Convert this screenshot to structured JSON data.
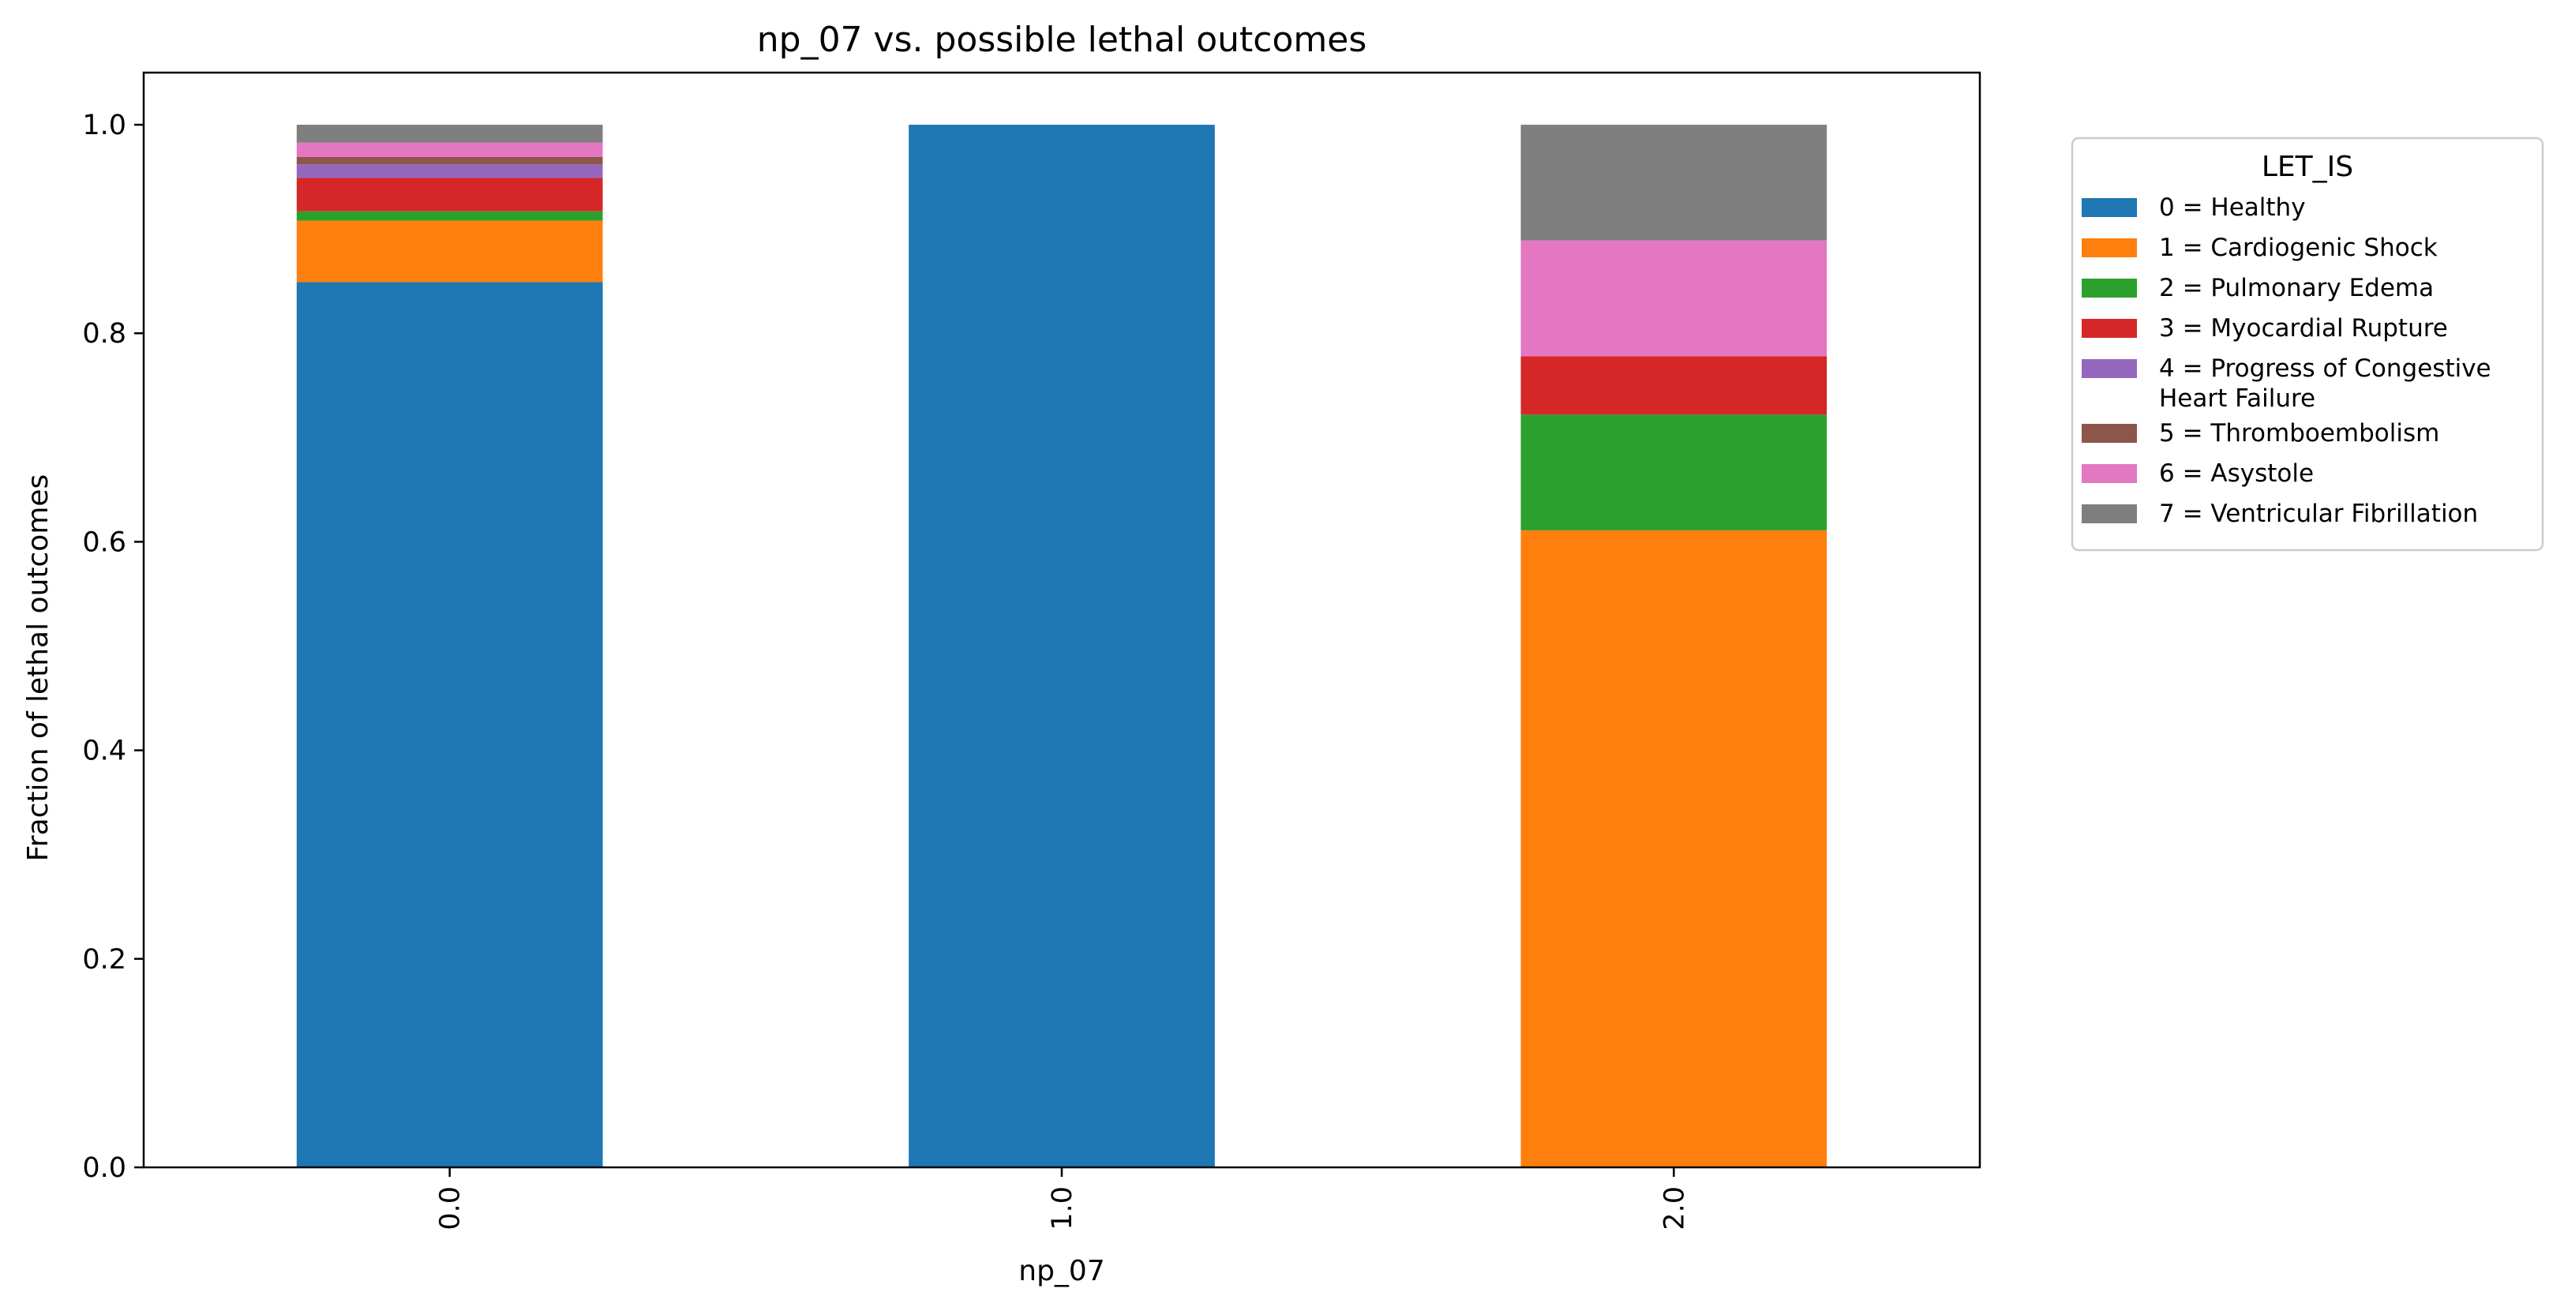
{
  "chart_data": {
    "type": "bar",
    "stacked": true,
    "title": "np_07 vs. possible lethal outcomes",
    "xlabel": "np_07",
    "ylabel": "Fraction of lethal outcomes",
    "categories": [
      "0.0",
      "1.0",
      "2.0"
    ],
    "ylim": [
      0,
      1.05
    ],
    "yticks": [
      "0.0",
      "0.2",
      "0.4",
      "0.6",
      "0.8",
      "1.0"
    ],
    "grid": false,
    "legend": {
      "title": "LET_IS",
      "placement": "outside-right"
    },
    "series": [
      {
        "name": "0 = Healthy",
        "color": "#1f77b4",
        "values": [
          0.849,
          1.0,
          0.0
        ]
      },
      {
        "name": "1 = Cardiogenic Shock",
        "color": "#ff7f0e",
        "values": [
          0.059,
          0.0,
          0.611
        ]
      },
      {
        "name": "2 = Pulmonary Edema",
        "color": "#2ca02c",
        "values": [
          0.009,
          0.0,
          0.111
        ]
      },
      {
        "name": "3 = Myocardial Rupture",
        "color": "#d62728",
        "values": [
          0.032,
          0.0,
          0.056
        ]
      },
      {
        "name": "4 = Progress of Congestive\nHeart Failure",
        "color": "#9467bd",
        "values": [
          0.013,
          0.0,
          0.0
        ]
      },
      {
        "name": "5 = Thromboembolism",
        "color": "#8c564b",
        "values": [
          0.007,
          0.0,
          0.0
        ]
      },
      {
        "name": "6 = Asystole",
        "color": "#e377c2",
        "values": [
          0.014,
          0.0,
          0.111
        ]
      },
      {
        "name": "7 = Ventricular Fibrillation",
        "color": "#7f7f7f",
        "values": [
          0.017,
          0.0,
          0.111
        ]
      }
    ]
  }
}
